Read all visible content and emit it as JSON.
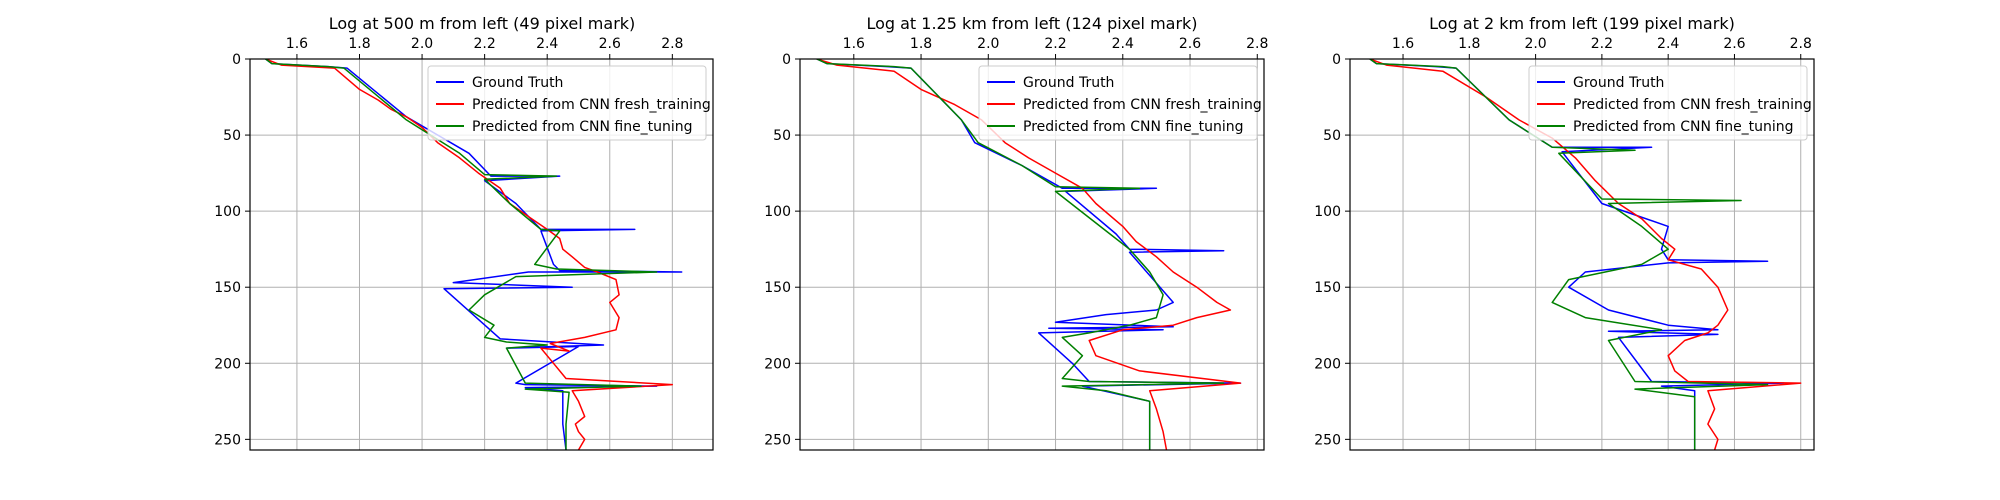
{
  "colors": {
    "ground_truth": "#0000ff",
    "fresh_training": "#ff0000",
    "fine_tuning": "#008000"
  },
  "chart_data": [
    {
      "type": "line",
      "title": "Log at 500 m from left (49 pixel mark)",
      "x_axis_position": "top",
      "y_inverted": true,
      "xlim": [
        1.45,
        2.93
      ],
      "ylim": [
        0,
        257
      ],
      "xticks": [
        1.6,
        1.8,
        2.0,
        2.2,
        2.4,
        2.6,
        2.8
      ],
      "xtick_labels": [
        "1.6",
        "1.8",
        "2.0",
        "2.2",
        "2.4",
        "2.6",
        "2.8"
      ],
      "yticks": [
        0,
        50,
        100,
        150,
        200,
        250
      ],
      "ytick_labels": [
        "0",
        "50",
        "100",
        "150",
        "200",
        "250"
      ],
      "grid": true,
      "legend": "upper right",
      "series": [
        {
          "name": "Ground Truth",
          "color": "ground_truth",
          "x": [
            1.5,
            1.52,
            1.7,
            1.76,
            1.95,
            2.15,
            2.22,
            2.44,
            2.2,
            2.3,
            2.38,
            2.43,
            2.68,
            2.38,
            2.42,
            2.44,
            2.83,
            2.34,
            2.1,
            2.48,
            2.07,
            2.25,
            2.58,
            2.27,
            2.5,
            2.3,
            2.33,
            2.75,
            2.33,
            2.45,
            2.45,
            2.46
          ],
          "y": [
            0,
            3,
            5,
            6,
            38,
            62,
            77,
            77,
            80,
            95,
            112,
            112,
            112,
            113,
            135,
            139,
            140,
            140,
            147,
            150,
            151,
            184,
            188,
            190,
            189,
            213,
            214,
            215,
            216,
            218,
            240,
            257
          ]
        },
        {
          "name": "Predicted from CNN fresh_training",
          "color": "fresh_training",
          "x": [
            1.5,
            1.55,
            1.72,
            1.8,
            1.86,
            1.9,
            1.95,
            2.0,
            2.05,
            2.12,
            2.18,
            2.25,
            2.28,
            2.35,
            2.4,
            2.44,
            2.45,
            2.48,
            2.52,
            2.56,
            2.62,
            2.63,
            2.6,
            2.63,
            2.62,
            2.52,
            2.41,
            2.47,
            2.38,
            2.42,
            2.46,
            2.8,
            2.48,
            2.5,
            2.52,
            2.49,
            2.5,
            2.52,
            2.5
          ],
          "y": [
            0,
            4,
            6,
            20,
            27,
            33,
            38,
            45,
            55,
            65,
            75,
            85,
            95,
            105,
            112,
            118,
            125,
            130,
            137,
            140,
            145,
            155,
            160,
            170,
            178,
            183,
            187,
            192,
            190,
            200,
            210,
            214,
            218,
            225,
            235,
            240,
            245,
            250,
            257
          ]
        },
        {
          "name": "Predicted from CNN fine_tuning",
          "color": "fine_tuning",
          "x": [
            1.5,
            1.52,
            1.7,
            1.75,
            1.95,
            2.12,
            2.2,
            2.43,
            2.2,
            2.28,
            2.38,
            2.44,
            2.36,
            2.43,
            2.75,
            2.3,
            2.2,
            2.15,
            2.23,
            2.2,
            2.27,
            2.4,
            2.27,
            2.33,
            2.7,
            2.33,
            2.47,
            2.46,
            2.46
          ],
          "y": [
            0,
            3,
            5,
            6,
            40,
            62,
            76,
            77,
            79,
            95,
            112,
            113,
            135,
            138,
            140,
            143,
            155,
            165,
            175,
            183,
            186,
            188,
            190,
            213,
            215,
            217,
            219,
            240,
            257
          ]
        }
      ]
    },
    {
      "type": "line",
      "title": "Log at 1.25 km from left (124 pixel mark)",
      "x_axis_position": "top",
      "y_inverted": true,
      "xlim": [
        1.44,
        2.82
      ],
      "ylim": [
        0,
        257
      ],
      "xticks": [
        1.6,
        1.8,
        2.0,
        2.2,
        2.4,
        2.6,
        2.8
      ],
      "xtick_labels": [
        "1.6",
        "1.8",
        "2.0",
        "2.2",
        "2.4",
        "2.6",
        "2.8"
      ],
      "yticks": [
        0,
        50,
        100,
        150,
        200,
        250
      ],
      "ytick_labels": [
        "0",
        "50",
        "100",
        "150",
        "200",
        "250"
      ],
      "grid": true,
      "legend": "upper right",
      "series": [
        {
          "name": "Ground Truth",
          "color": "ground_truth",
          "x": [
            1.49,
            1.52,
            1.7,
            1.77,
            1.92,
            1.96,
            2.1,
            2.22,
            2.5,
            2.23,
            2.38,
            2.42,
            2.7,
            2.42,
            2.55,
            2.5,
            2.35,
            2.2,
            2.55,
            2.18,
            2.52,
            2.15,
            2.25,
            2.3,
            2.75,
            2.28,
            2.34,
            2.48,
            2.48
          ],
          "y": [
            0,
            3,
            5,
            6,
            40,
            55,
            70,
            85,
            85,
            87,
            115,
            125,
            126,
            127,
            160,
            165,
            168,
            173,
            176,
            177,
            178,
            180,
            200,
            212,
            213,
            215,
            218,
            225,
            257
          ]
        },
        {
          "name": "Predicted from CNN fresh_training",
          "color": "fresh_training",
          "x": [
            1.49,
            1.55,
            1.72,
            1.8,
            1.9,
            1.98,
            2.05,
            2.12,
            2.2,
            2.28,
            2.32,
            2.4,
            2.44,
            2.5,
            2.55,
            2.62,
            2.68,
            2.72,
            2.62,
            2.55,
            2.4,
            2.3,
            2.32,
            2.45,
            2.75,
            2.48,
            2.5,
            2.52,
            2.53
          ],
          "y": [
            0,
            4,
            8,
            20,
            30,
            40,
            55,
            65,
            75,
            85,
            95,
            110,
            120,
            130,
            140,
            150,
            160,
            165,
            170,
            175,
            178,
            185,
            195,
            205,
            213,
            218,
            230,
            245,
            257
          ]
        },
        {
          "name": "Predicted from CNN fine_tuning",
          "color": "fine_tuning",
          "x": [
            1.49,
            1.52,
            1.72,
            1.77,
            1.92,
            1.97,
            2.1,
            2.2,
            2.45,
            2.2,
            2.35,
            2.42,
            2.48,
            2.52,
            2.5,
            2.42,
            2.3,
            2.22,
            2.28,
            2.22,
            2.3,
            2.7,
            2.22,
            2.35,
            2.48,
            2.48
          ],
          "y": [
            0,
            3,
            5,
            6,
            40,
            55,
            70,
            84,
            85,
            87,
            113,
            125,
            140,
            155,
            170,
            175,
            180,
            183,
            195,
            210,
            212,
            213,
            215,
            218,
            225,
            257
          ]
        }
      ]
    },
    {
      "type": "line",
      "title": "Log at 2 km from left (199 pixel mark)",
      "x_axis_position": "top",
      "y_inverted": true,
      "xlim": [
        1.44,
        2.84
      ],
      "ylim": [
        0,
        257
      ],
      "xticks": [
        1.6,
        1.8,
        2.0,
        2.2,
        2.4,
        2.6,
        2.8
      ],
      "xtick_labels": [
        "1.6",
        "1.8",
        "2.0",
        "2.2",
        "2.4",
        "2.6",
        "2.8"
      ],
      "yticks": [
        0,
        50,
        100,
        150,
        200,
        250
      ],
      "ytick_labels": [
        "0",
        "50",
        "100",
        "150",
        "200",
        "250"
      ],
      "grid": true,
      "legend": "upper right",
      "series": [
        {
          "name": "Ground Truth",
          "color": "ground_truth",
          "x": [
            1.5,
            1.52,
            1.7,
            1.76,
            1.92,
            2.05,
            2.35,
            2.08,
            2.2,
            2.4,
            2.38,
            2.4,
            2.7,
            2.4,
            2.15,
            2.1,
            2.22,
            2.4,
            2.55,
            2.22,
            2.55,
            2.25,
            2.35,
            2.75,
            2.38,
            2.48,
            2.48
          ],
          "y": [
            0,
            3,
            5,
            6,
            40,
            58,
            58,
            61,
            95,
            110,
            125,
            132,
            133,
            134,
            140,
            150,
            165,
            175,
            178,
            179,
            181,
            183,
            212,
            213,
            215,
            218,
            257
          ]
        },
        {
          "name": "Predicted from CNN fresh_training",
          "color": "fresh_training",
          "x": [
            1.5,
            1.55,
            1.72,
            1.85,
            1.95,
            2.05,
            2.12,
            2.18,
            2.25,
            2.32,
            2.38,
            2.42,
            2.4,
            2.5,
            2.55,
            2.58,
            2.55,
            2.52,
            2.45,
            2.4,
            2.42,
            2.46,
            2.8,
            2.52,
            2.54,
            2.52,
            2.55,
            2.54
          ],
          "y": [
            0,
            4,
            8,
            25,
            40,
            52,
            65,
            80,
            95,
            105,
            118,
            125,
            132,
            138,
            150,
            165,
            175,
            180,
            185,
            195,
            205,
            212,
            213,
            218,
            230,
            240,
            250,
            257
          ]
        },
        {
          "name": "Predicted from CNN fine_tuning",
          "color": "fine_tuning",
          "x": [
            1.5,
            1.52,
            1.72,
            1.76,
            1.92,
            2.05,
            2.3,
            2.07,
            2.2,
            2.62,
            2.22,
            2.32,
            2.4,
            2.32,
            2.1,
            2.05,
            2.15,
            2.38,
            2.22,
            2.3,
            2.7,
            2.3,
            2.48,
            2.48
          ],
          "y": [
            0,
            3,
            5,
            6,
            40,
            58,
            60,
            62,
            92,
            93,
            95,
            110,
            125,
            135,
            145,
            160,
            170,
            178,
            185,
            212,
            214,
            217,
            222,
            257
          ]
        }
      ]
    }
  ]
}
